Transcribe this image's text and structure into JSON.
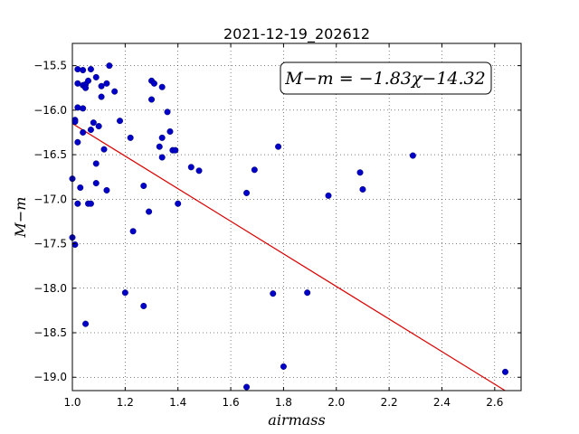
{
  "chart_data": {
    "type": "scatter",
    "title": "2021-12-19_202612",
    "xlabel": "airmass",
    "ylabel": "M−m",
    "xlim": [
      1.0,
      2.7
    ],
    "ylim": [
      -19.15,
      -15.25
    ],
    "xticks": [
      1.0,
      1.2,
      1.4,
      1.6,
      1.8,
      2.0,
      2.2,
      2.4,
      2.6
    ],
    "xtick_labels": [
      "1.0",
      "1.2",
      "1.4",
      "1.6",
      "1.8",
      "2.0",
      "2.2",
      "2.4",
      "2.6"
    ],
    "yticks": [
      -19.0,
      -18.5,
      -18.0,
      -17.5,
      -17.0,
      -16.5,
      -16.0,
      -15.5
    ],
    "ytick_labels": [
      "−19.0",
      "−18.5",
      "−18.0",
      "−17.5",
      "−17.0",
      "−16.5",
      "−16.0",
      "−15.5"
    ],
    "grid": true,
    "annotation": "M−m = −1.83χ−14.32",
    "annotation_position": "top-right",
    "fit_line": {
      "slope": -1.83,
      "intercept": -14.32,
      "x_range": [
        1.0,
        2.64
      ],
      "color": "#dd0000"
    },
    "marker_color": "#0000c8",
    "points": [
      [
        1.0,
        -16.77
      ],
      [
        1.0,
        -17.43
      ],
      [
        1.01,
        -17.51
      ],
      [
        1.01,
        -16.11
      ],
      [
        1.01,
        -16.13
      ],
      [
        1.02,
        -15.54
      ],
      [
        1.02,
        -15.7
      ],
      [
        1.02,
        -15.97
      ],
      [
        1.02,
        -16.36
      ],
      [
        1.02,
        -17.05
      ],
      [
        1.03,
        -16.87
      ],
      [
        1.04,
        -15.55
      ],
      [
        1.04,
        -15.72
      ],
      [
        1.04,
        -15.98
      ],
      [
        1.04,
        -16.25
      ],
      [
        1.05,
        -15.71
      ],
      [
        1.05,
        -15.75
      ],
      [
        1.05,
        -18.4
      ],
      [
        1.06,
        -17.05
      ],
      [
        1.06,
        -15.67
      ],
      [
        1.07,
        -15.54
      ],
      [
        1.07,
        -16.22
      ],
      [
        1.07,
        -17.05
      ],
      [
        1.08,
        -16.14
      ],
      [
        1.09,
        -15.63
      ],
      [
        1.09,
        -16.6
      ],
      [
        1.09,
        -16.82
      ],
      [
        1.1,
        -16.18
      ],
      [
        1.11,
        -15.85
      ],
      [
        1.11,
        -15.73
      ],
      [
        1.12,
        -16.44
      ],
      [
        1.13,
        -15.7
      ],
      [
        1.13,
        -16.9
      ],
      [
        1.14,
        -15.5
      ],
      [
        1.16,
        -15.79
      ],
      [
        1.18,
        -16.12
      ],
      [
        1.2,
        -18.05
      ],
      [
        1.22,
        -16.31
      ],
      [
        1.23,
        -17.36
      ],
      [
        1.27,
        -18.2
      ],
      [
        1.27,
        -16.85
      ],
      [
        1.29,
        -17.14
      ],
      [
        1.3,
        -15.88
      ],
      [
        1.3,
        -15.67
      ],
      [
        1.31,
        -15.7
      ],
      [
        1.33,
        -16.41
      ],
      [
        1.34,
        -15.74
      ],
      [
        1.34,
        -16.31
      ],
      [
        1.34,
        -16.53
      ],
      [
        1.36,
        -16.02
      ],
      [
        1.37,
        -16.24
      ],
      [
        1.38,
        -16.45
      ],
      [
        1.39,
        -16.45
      ],
      [
        1.4,
        -17.05
      ],
      [
        1.45,
        -16.64
      ],
      [
        1.48,
        -16.68
      ],
      [
        1.66,
        -16.93
      ],
      [
        1.66,
        -19.11
      ],
      [
        1.69,
        -16.67
      ],
      [
        1.76,
        -18.06
      ],
      [
        1.78,
        -16.41
      ],
      [
        1.8,
        -18.88
      ],
      [
        1.89,
        -18.05
      ],
      [
        1.97,
        -16.96
      ],
      [
        2.09,
        -16.7
      ],
      [
        2.1,
        -16.89
      ],
      [
        2.29,
        -16.51
      ],
      [
        2.64,
        -18.94
      ]
    ]
  }
}
